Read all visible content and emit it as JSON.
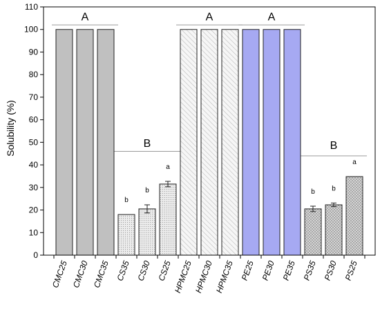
{
  "chart_data": {
    "type": "bar",
    "ylabel": "Solubility (%)",
    "xlabel": "",
    "ylim": [
      0,
      110
    ],
    "yticks": [
      0,
      10,
      20,
      30,
      40,
      50,
      60,
      70,
      80,
      90,
      100,
      110
    ],
    "grid": false,
    "categories": [
      "CMC25",
      "CMC30",
      "CMC35",
      "CS35",
      "CS30",
      "CS25",
      "HPMC25",
      "HPMC30",
      "HPMC35",
      "PE25",
      "PE30",
      "PE35",
      "PS35",
      "PS30",
      "PS25"
    ],
    "values": [
      100,
      100,
      100,
      18,
      20.5,
      31.5,
      100,
      100,
      100,
      100,
      100,
      100,
      20.5,
      22.3,
      34.8
    ],
    "errors": [
      0,
      0,
      0,
      0,
      1.8,
      1.2,
      0,
      0,
      0,
      0,
      0,
      0,
      1.2,
      0.8,
      0
    ],
    "bar_styles": [
      "solid-gray",
      "solid-gray",
      "solid-gray",
      "dotted",
      "dotted",
      "dotted",
      "hatched",
      "hatched",
      "hatched",
      "solid-blue",
      "solid-blue",
      "solid-blue",
      "crosshatch",
      "crosshatch",
      "crosshatch"
    ],
    "colors": {
      "solid-gray": "#c0c0c0",
      "solid-blue": "#a6a9f2",
      "dotted": "#e6e6e6",
      "hatched": "#f4f4f4",
      "crosshatch": "#d8d8d8"
    },
    "letters": [
      "",
      "",
      "",
      "b",
      "b",
      "a",
      "",
      "",
      "",
      "",
      "",
      "",
      "b",
      "b",
      "a"
    ],
    "groups": [
      {
        "label": "A",
        "categories": [
          "CMC25",
          "CMC35"
        ],
        "line_y": 102,
        "label_y": 104
      },
      {
        "label": "B",
        "categories": [
          "CS35",
          "CS25"
        ],
        "line_y": 46,
        "label_y": 48
      },
      {
        "label": "A",
        "categories": [
          "HPMC25",
          "HPMC35"
        ],
        "line_y": 102,
        "label_y": 104
      },
      {
        "label": "A",
        "categories": [
          "PE25",
          "PE35"
        ],
        "line_y": 102,
        "label_y": 104
      },
      {
        "label": "B",
        "categories": [
          "PS35",
          "PS25"
        ],
        "line_y": 44,
        "label_y": 47
      }
    ]
  }
}
